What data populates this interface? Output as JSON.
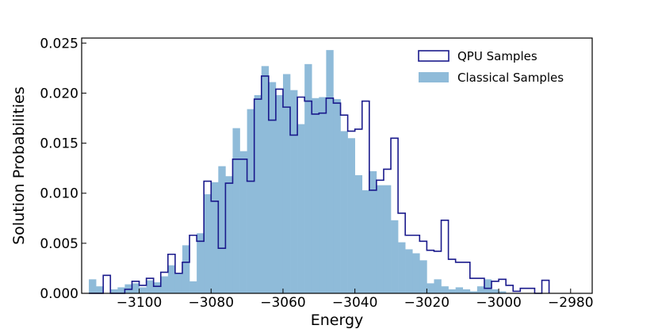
{
  "chart_data": {
    "type": "histogram",
    "xlabel": "Energy",
    "ylabel": "Solution Probabilities",
    "xlim": [
      -3116,
      -2974
    ],
    "ylim": [
      0,
      0.0255
    ],
    "xticks": [
      -3100,
      -3080,
      -3060,
      -3040,
      -3020,
      -3000,
      -2980
    ],
    "xtick_labels": [
      "−3100",
      "−3080",
      "−3060",
      "−3040",
      "−3020",
      "−3000",
      "−2980"
    ],
    "yticks": [
      0.0,
      0.005,
      0.01,
      0.015,
      0.02,
      0.025
    ],
    "ytick_labels": [
      "0.000",
      "0.005",
      "0.010",
      "0.015",
      "0.020",
      "0.025"
    ],
    "grid": false,
    "legend_position": "top-right",
    "bin_edges": [
      -3114,
      -3112,
      -3110,
      -3108,
      -3106,
      -3104,
      -3102,
      -3100,
      -3098,
      -3096,
      -3094,
      -3092,
      -3090,
      -3088,
      -3086,
      -3084,
      -3082,
      -3080,
      -3078,
      -3076,
      -3074,
      -3072,
      -3070,
      -3068,
      -3066,
      -3064,
      -3062,
      -3060,
      -3058,
      -3056,
      -3054,
      -3052,
      -3050,
      -3048,
      -3046,
      -3044,
      -3042,
      -3040,
      -3038,
      -3036,
      -3034,
      -3032,
      -3030,
      -3028,
      -3026,
      -3024,
      -3022,
      -3020,
      -3018,
      -3016,
      -3014,
      -3012,
      -3010,
      -3008,
      -3006,
      -3004,
      -3002,
      -3000,
      -2998,
      -2996,
      -2994,
      -2992,
      -2990,
      -2988,
      -2986
    ],
    "series": [
      {
        "name": "QPU Samples",
        "style": "step",
        "color": "#1a1a8c",
        "values": [
          0,
          0,
          0.0018,
          0,
          0,
          0.0004,
          0.0012,
          0.0008,
          0.0015,
          0.0007,
          0.0021,
          0.0039,
          0.002,
          0.0031,
          0.0058,
          0.0052,
          0.0112,
          0.0092,
          0.0045,
          0.011,
          0.0134,
          0.0134,
          0.0112,
          0.0194,
          0.0217,
          0.0173,
          0.0204,
          0.0186,
          0.0158,
          0.0196,
          0.0192,
          0.0179,
          0.018,
          0.0195,
          0.019,
          0.0178,
          0.0162,
          0.0164,
          0.0192,
          0.0103,
          0.0113,
          0.0124,
          0.0155,
          0.008,
          0.0058,
          0.0058,
          0.0052,
          0.0043,
          0.0042,
          0.0073,
          0.0034,
          0.0031,
          0.0031,
          0.0015,
          0.0015,
          0.0005,
          0.0012,
          0.0014,
          0.0008,
          0.0002,
          0.0005,
          0.0005,
          0,
          0.0013
        ]
      },
      {
        "name": "Classical Samples",
        "style": "filled",
        "color": "#8fbbd9",
        "values": [
          0.0014,
          0.0007,
          0,
          0.0004,
          0.0006,
          0.0009,
          0.001,
          0.0006,
          0.0013,
          0.0011,
          0.0017,
          0.0028,
          0.002,
          0.0048,
          0.0012,
          0.006,
          0.0099,
          0.0111,
          0.0127,
          0.0117,
          0.0165,
          0.0142,
          0.0184,
          0.0198,
          0.0227,
          0.0211,
          0.0198,
          0.0219,
          0.0203,
          0.0169,
          0.0229,
          0.0195,
          0.0196,
          0.0243,
          0.0194,
          0.0162,
          0.0155,
          0.0118,
          0.0103,
          0.0122,
          0.0108,
          0.0108,
          0.0073,
          0.0051,
          0.0044,
          0.004,
          0.0033,
          0.001,
          0.0014,
          0.0007,
          0.0004,
          0.0006,
          0.0004,
          0.0002,
          0.0007,
          0.0014,
          0.0004,
          0.0002,
          0,
          0,
          0,
          0,
          0,
          0
        ]
      }
    ]
  }
}
